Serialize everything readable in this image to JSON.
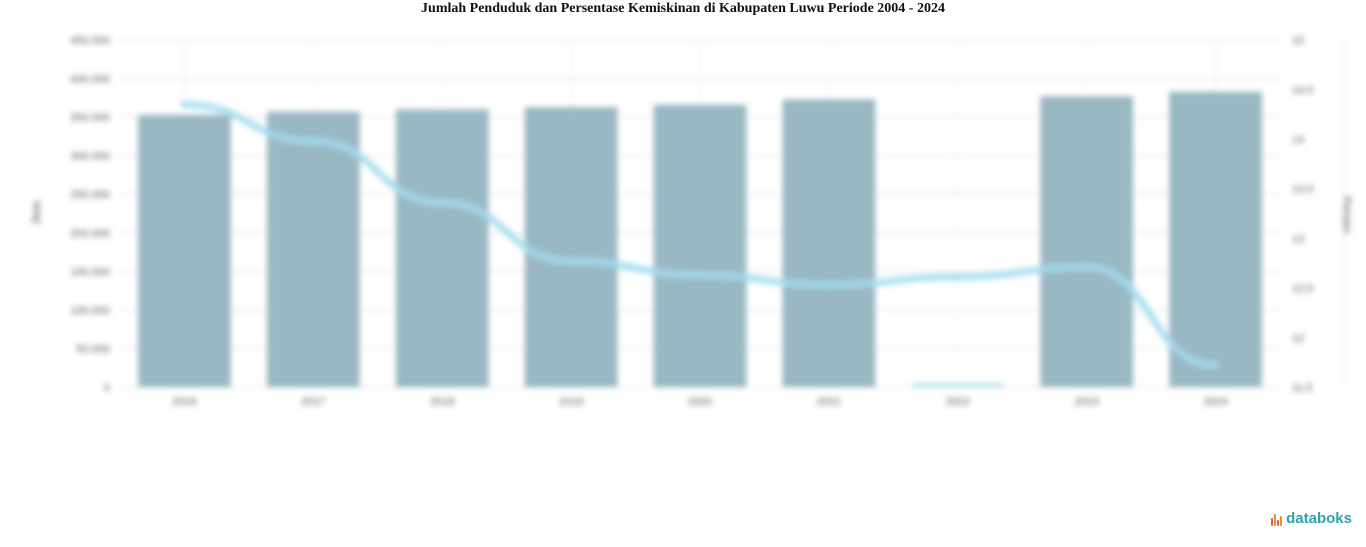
{
  "title": "Jumlah Penduduk dan Persentase Kemiskinan di Kabupaten Luwu Periode 2004 - 2024",
  "brand": {
    "name": "databoks",
    "icon": "databoks-logo-icon",
    "color": "#2ea3a8"
  },
  "chart_data": {
    "type": "bar",
    "title": "Jumlah Penduduk dan Persentase Kemiskinan di Kabupaten Luwu Periode 2004 - 2024",
    "categories": [
      "2016",
      "2017",
      "2018",
      "2019",
      "2020",
      "2021",
      "2022",
      "2023",
      "2024"
    ],
    "series": [
      {
        "type": "bar",
        "axis": "left",
        "color": "#9ab8c4",
        "values": [
          353000,
          357000,
          360000,
          363000,
          366000,
          373000,
          null,
          377000,
          383000
        ]
      },
      {
        "type": "line",
        "axis": "right",
        "color": "#a3dcf0",
        "values": [
          14.35,
          13.98,
          13.36,
          12.77,
          12.63,
          12.53,
          12.61,
          12.71,
          11.72
        ]
      }
    ],
    "ylabel": "Jiwa",
    "y2label": "Persen",
    "ylim": [
      0,
      450000
    ],
    "y2lim": [
      11.5,
      15
    ],
    "yticks": [
      "0",
      "50.000",
      "100.000",
      "150.000",
      "200.000",
      "250.000",
      "300.000",
      "350.000",
      "400.000",
      "450.000"
    ],
    "y2ticks": [
      "11,5",
      "12",
      "12,5",
      "13",
      "13,5",
      "14",
      "14,5",
      "15"
    ],
    "grid": true
  }
}
